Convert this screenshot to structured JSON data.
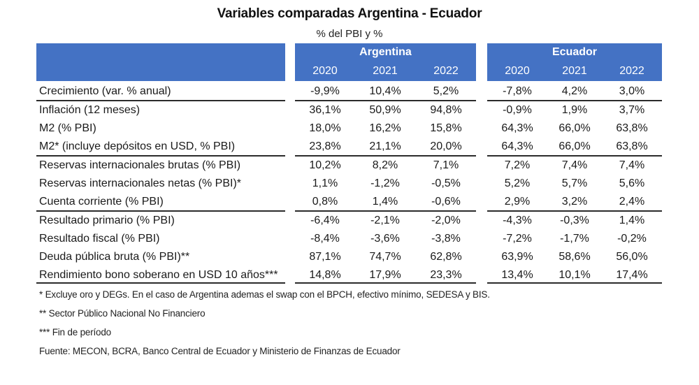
{
  "title": "Variables comparadas Argentina - Ecuador",
  "subtitle": "% del PBI y %",
  "header": {
    "groups": [
      {
        "name": "Argentina",
        "years": [
          "2020",
          "2021",
          "2022"
        ]
      },
      {
        "name": "Ecuador",
        "years": [
          "2020",
          "2021",
          "2022"
        ]
      }
    ],
    "header_color": "#4472c4"
  },
  "rows": [
    {
      "label": "Crecimiento (var. % anual)",
      "argentina": [
        "-9,9%",
        "10,4%",
        "5,2%"
      ],
      "ecuador": [
        "-7,8%",
        "4,2%",
        "3,0%"
      ]
    },
    {
      "label": "Inflación (12 meses)",
      "argentina": [
        "36,1%",
        "50,9%",
        "94,8%"
      ],
      "ecuador": [
        "-0,9%",
        "1,9%",
        "3,7%"
      ]
    },
    {
      "label": "M2 (% PBI)",
      "argentina": [
        "18,0%",
        "16,2%",
        "15,8%"
      ],
      "ecuador": [
        "64,3%",
        "66,0%",
        "63,8%"
      ]
    },
    {
      "label": "M2* (incluye depósitos en USD, % PBI)",
      "argentina": [
        "23,8%",
        "21,1%",
        "20,0%"
      ],
      "ecuador": [
        "64,3%",
        "66,0%",
        "63,8%"
      ]
    },
    {
      "label": "Reservas internacionales brutas (% PBI)",
      "argentina": [
        "10,2%",
        "8,2%",
        "7,1%"
      ],
      "ecuador": [
        "7,2%",
        "7,4%",
        "7,4%"
      ]
    },
    {
      "label": "Reservas internacionales netas (% PBI)*",
      "argentina": [
        "1,1%",
        "-1,2%",
        "-0,5%"
      ],
      "ecuador": [
        "5,2%",
        "5,7%",
        "5,6%"
      ]
    },
    {
      "label": "Cuenta corriente (% PBI)",
      "argentina": [
        "0,8%",
        "1,4%",
        "-0,6%"
      ],
      "ecuador": [
        "2,9%",
        "3,2%",
        "2,4%"
      ]
    },
    {
      "label": "Resultado primario (% PBI)",
      "argentina": [
        "-6,4%",
        "-2,1%",
        "-2,0%"
      ],
      "ecuador": [
        "-4,3%",
        "-0,3%",
        "1,4%"
      ]
    },
    {
      "label": "Resultado fiscal (% PBI)",
      "argentina": [
        "-8,4%",
        "-3,6%",
        "-3,8%"
      ],
      "ecuador": [
        "-7,2%",
        "-1,7%",
        "-0,2%"
      ]
    },
    {
      "label": "Deuda pública bruta (% PBI)**",
      "argentina": [
        "87,1%",
        "74,7%",
        "62,8%"
      ],
      "ecuador": [
        "63,9%",
        "58,6%",
        "56,0%"
      ]
    },
    {
      "label": "Rendimiento bono soberano en USD 10 años***",
      "argentina": [
        "14,8%",
        "17,9%",
        "23,3%"
      ],
      "ecuador": [
        "13,4%",
        "10,1%",
        "17,4%"
      ]
    }
  ],
  "footnotes": [
    "* Excluye oro y DEGs. En el caso de Argentina ademas el swap con el BPCH, efectivo mínimo, SEDESA y BIS.",
    "** Sector Público Nacional No Financiero",
    "*** Fin de período",
    "Fuente: MECON, BCRA, Banco Central de Ecuador y Ministerio de Finanzas de Ecuador"
  ]
}
